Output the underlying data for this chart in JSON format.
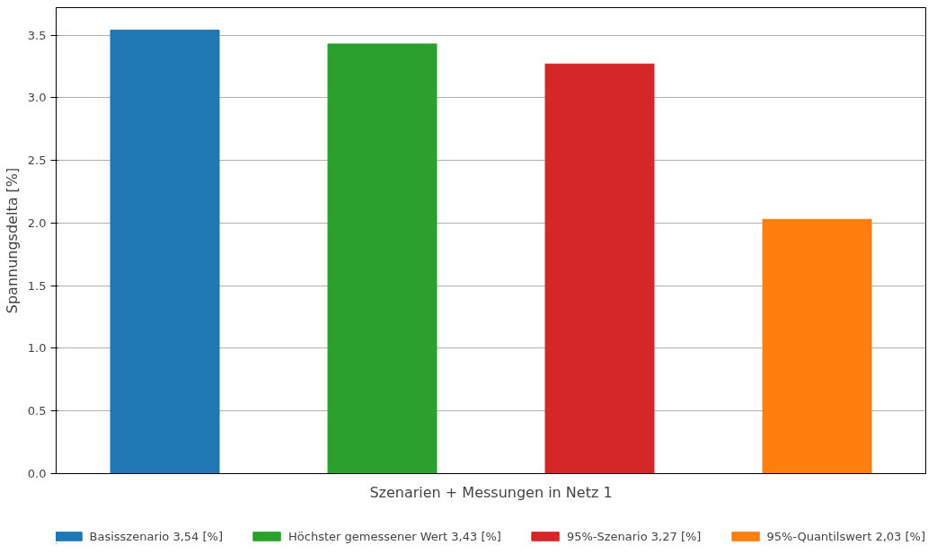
{
  "chart_data": {
    "type": "bar",
    "xlabel": "Szenarien + Messungen in Netz 1",
    "ylabel": "Spannungsdelta [%]",
    "categories": [
      null,
      null,
      null,
      null
    ],
    "series": [
      {
        "name": "Basisszenario 3,54 [%]",
        "color": "#1f77b4",
        "values": [
          3.54,
          null,
          null,
          null
        ]
      },
      {
        "name": "Höchster gemessener Wert 3,43 [%]",
        "color": "#2ca02c",
        "values": [
          null,
          3.43,
          null,
          null
        ]
      },
      {
        "name": "95%-Szenario 3,27 [%]",
        "color": "#d62728",
        "values": [
          null,
          null,
          3.27,
          null
        ]
      },
      {
        "name": "95%-Quantilswert 2,03 [%]",
        "color": "#ff7f0e",
        "values": [
          null,
          null,
          null,
          2.03
        ]
      }
    ],
    "ylim": [
      0,
      3.72
    ],
    "yticks": [
      {
        "value": 0,
        "label": "0.0"
      },
      0.5,
      {
        "value": 1,
        "label": "1.0"
      },
      1.5,
      {
        "value": 2,
        "label": "2.0"
      },
      2.5,
      {
        "value": 3,
        "label": "3.0"
      },
      3.5
    ],
    "grid": "y",
    "legend": "bottom",
    "tick_labels": "y"
  }
}
